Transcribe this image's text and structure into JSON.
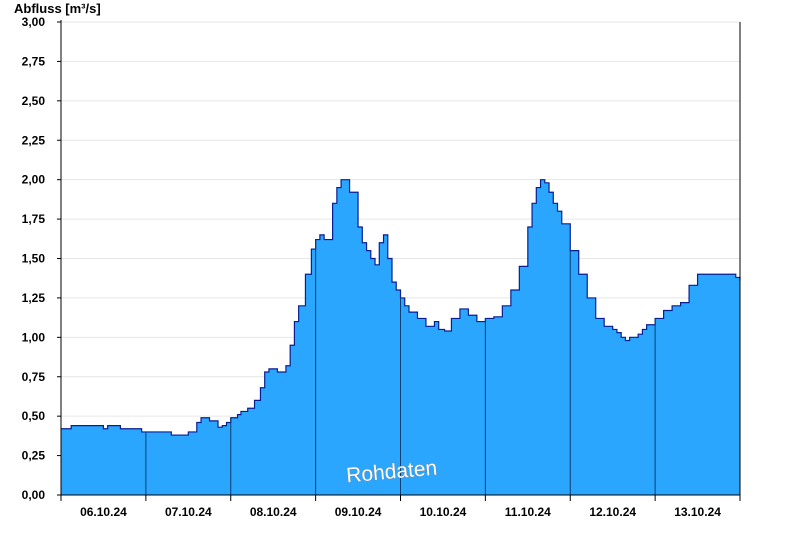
{
  "chart_data": {
    "type": "area",
    "title": "",
    "ylabel": "Abfluss [m³/s]",
    "xlabel": "",
    "ylim": [
      0,
      3.0
    ],
    "yticks": [
      "0,00",
      "0,25",
      "0,50",
      "0,75",
      "1,00",
      "1,25",
      "1,50",
      "1,75",
      "2,00",
      "2,25",
      "2,50",
      "2,75",
      "3,00"
    ],
    "ytick_values": [
      0,
      0.25,
      0.5,
      0.75,
      1.0,
      1.25,
      1.5,
      1.75,
      2.0,
      2.25,
      2.5,
      2.75,
      3.0
    ],
    "xlim": [
      0,
      8.0
    ],
    "x_unit": "days since 06.10.24 00:00",
    "xtick_labels": [
      "06.10.24",
      "07.10.24",
      "08.10.24",
      "09.10.24",
      "10.10.24",
      "11.10.24",
      "12.10.24",
      "13.10.24"
    ],
    "grid": true,
    "annotation": "Rohdaten",
    "fill_color": "#2aa6ff",
    "line_color": "#0a1f8f",
    "series": [
      {
        "x": [
          0.0,
          0.06,
          0.12,
          0.3,
          0.45,
          0.5,
          0.55,
          0.6,
          0.7,
          0.85,
          0.95,
          1.0,
          1.1,
          1.2,
          1.3,
          1.4,
          1.5,
          1.6,
          1.65,
          1.75,
          1.85,
          1.9,
          1.95,
          2.0,
          2.08,
          2.12,
          2.2,
          2.28,
          2.35,
          2.4,
          2.45,
          2.5,
          2.55,
          2.6,
          2.65,
          2.7,
          2.75,
          2.8,
          2.88,
          2.95,
          3.0,
          3.05,
          3.1,
          3.2,
          3.25,
          3.3,
          3.4,
          3.5,
          3.55,
          3.6,
          3.65,
          3.7,
          3.75,
          3.8,
          3.85,
          3.9,
          3.95,
          4.0,
          4.05,
          4.1,
          4.2,
          4.3,
          4.4,
          4.45,
          4.52,
          4.6,
          4.7,
          4.8,
          4.9,
          5.0,
          5.1,
          5.2,
          5.3,
          5.4,
          5.5,
          5.55,
          5.6,
          5.65,
          5.7,
          5.75,
          5.8,
          5.85,
          5.9,
          6.0,
          6.1,
          6.2,
          6.3,
          6.4,
          6.5,
          6.55,
          6.6,
          6.65,
          6.7,
          6.8,
          6.85,
          6.9,
          7.0,
          7.1,
          7.2,
          7.3,
          7.4,
          7.5,
          7.6,
          7.7,
          7.8,
          7.9,
          7.95,
          8.0
        ],
        "y": [
          0.42,
          0.42,
          0.44,
          0.44,
          0.44,
          0.42,
          0.44,
          0.44,
          0.42,
          0.42,
          0.4,
          0.4,
          0.4,
          0.4,
          0.38,
          0.38,
          0.4,
          0.46,
          0.49,
          0.47,
          0.43,
          0.44,
          0.46,
          0.49,
          0.51,
          0.53,
          0.55,
          0.6,
          0.68,
          0.78,
          0.8,
          0.8,
          0.78,
          0.78,
          0.82,
          0.95,
          1.1,
          1.2,
          1.4,
          1.56,
          1.62,
          1.65,
          1.62,
          1.85,
          1.95,
          2.0,
          1.92,
          1.7,
          1.6,
          1.55,
          1.5,
          1.46,
          1.6,
          1.65,
          1.5,
          1.35,
          1.3,
          1.25,
          1.2,
          1.16,
          1.12,
          1.07,
          1.1,
          1.05,
          1.04,
          1.12,
          1.18,
          1.14,
          1.1,
          1.12,
          1.13,
          1.2,
          1.3,
          1.45,
          1.7,
          1.85,
          1.95,
          2.0,
          1.98,
          1.92,
          1.85,
          1.8,
          1.72,
          1.55,
          1.4,
          1.25,
          1.12,
          1.07,
          1.05,
          1.03,
          1.0,
          0.98,
          1.0,
          1.02,
          1.05,
          1.08,
          1.12,
          1.17,
          1.2,
          1.22,
          1.33,
          1.4,
          1.4,
          1.4,
          1.4,
          1.4,
          1.38,
          1.36
        ]
      }
    ]
  }
}
